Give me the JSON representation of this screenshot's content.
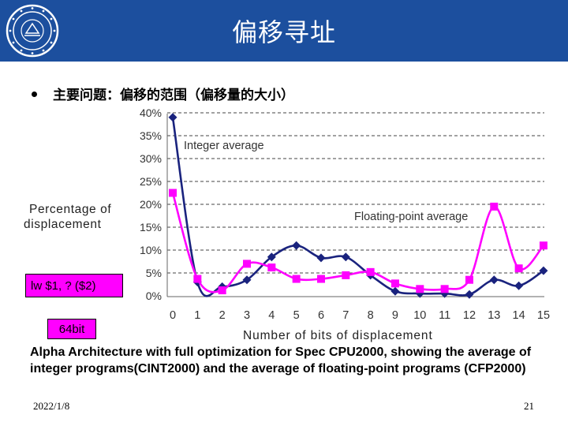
{
  "header": {
    "title": "偏移寻址"
  },
  "bullet": {
    "text": "主要问题：偏移的范围（偏移量的大小）"
  },
  "chart_data": {
    "type": "line",
    "ylabel_line1": "Percentage of",
    "ylabel_line2": "displacement",
    "xlabel": "Number of bits of displacement",
    "x": [
      0,
      1,
      2,
      3,
      4,
      5,
      6,
      7,
      8,
      9,
      10,
      11,
      12,
      13,
      14,
      15
    ],
    "ylim": [
      0,
      40
    ],
    "yticks": [
      "0%",
      "5%",
      "10%",
      "15%",
      "20%",
      "25%",
      "30%",
      "35%",
      "40%"
    ],
    "grid": true,
    "series": [
      {
        "name": "Integer average",
        "color": "#1a237e",
        "marker": "circle",
        "values": [
          39,
          3,
          2,
          3.5,
          8.5,
          11,
          8.3,
          8.5,
          4.5,
          1,
          0.5,
          0.5,
          0.3,
          3.5,
          2.2,
          5.5
        ]
      },
      {
        "name": "Floating-point average",
        "color": "#ff00ff",
        "marker": "square",
        "values": [
          22.5,
          3.7,
          1.2,
          7,
          6.2,
          3.7,
          3.7,
          4.5,
          5.2,
          2.7,
          1.5,
          1.5,
          3.5,
          19.5,
          6,
          11
        ]
      }
    ]
  },
  "annotations": {
    "lw": "lw $1, ? ($2)",
    "bits64": "64bit"
  },
  "caption": "Alpha Architecture with full optimization for Spec CPU2000, showing the average of integer programs(CINT2000) and the average of floating-point programs (CFP2000)",
  "footer": {
    "date": "2022/1/8",
    "page": "21"
  }
}
